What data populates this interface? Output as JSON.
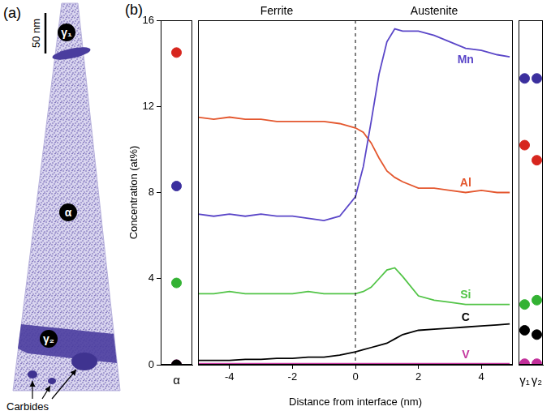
{
  "panel_a": {
    "label": "(a)",
    "scale_bar": "50 nm",
    "phases": [
      "γ₁",
      "α",
      "γ₂"
    ],
    "carbides_label": "Carbides"
  },
  "panel_b": {
    "label": "(b)"
  },
  "chart_data": [
    {
      "type": "scatter",
      "y_label": "Concentration (at%)",
      "categories": [
        "α"
      ],
      "ylim": [
        0,
        16
      ],
      "yticks": [
        0,
        4,
        8,
        12,
        16
      ],
      "tick_labels": true,
      "marker": "circle",
      "series": [
        {
          "name": "Mn",
          "color": "#3b2f9e",
          "values": [
            8.3
          ]
        },
        {
          "name": "Al",
          "color": "#d7261e",
          "values": [
            14.5
          ]
        },
        {
          "name": "Si",
          "color": "#33b233",
          "values": [
            3.8
          ]
        },
        {
          "name": "C",
          "color": "#000000",
          "values": [
            0.0
          ]
        },
        {
          "name": "V",
          "color": "#c22f9a",
          "values": [
            0.0
          ]
        }
      ]
    },
    {
      "type": "line",
      "x_label": "Distance from interface (nm)",
      "annotations": [
        "Ferrite",
        "Austenite"
      ],
      "interface": 0,
      "xlim": [
        -5,
        5
      ],
      "xticks": [
        -4,
        -2,
        0,
        2,
        4
      ],
      "ylim": [
        0,
        16
      ],
      "yticks": [
        0,
        4,
        8,
        12,
        16
      ],
      "tick_labels": "x",
      "x": [
        -5,
        -4.5,
        -4,
        -3.5,
        -3,
        -2.5,
        -2,
        -1.5,
        -1,
        -0.5,
        0,
        0.25,
        0.5,
        0.75,
        1,
        1.25,
        1.5,
        2,
        2.5,
        3,
        3.5,
        4,
        4.5,
        4.9
      ],
      "series": [
        {
          "name": "Mn",
          "color": "#5a46c8",
          "values": [
            7.0,
            6.9,
            7.0,
            6.9,
            7.0,
            6.9,
            6.9,
            6.8,
            6.7,
            6.9,
            7.8,
            9.2,
            11.3,
            13.5,
            15.0,
            15.6,
            15.5,
            15.5,
            15.3,
            15.0,
            14.7,
            14.6,
            14.4,
            14.3
          ]
        },
        {
          "name": "Al",
          "color": "#e4572e",
          "values": [
            11.5,
            11.4,
            11.5,
            11.4,
            11.4,
            11.3,
            11.3,
            11.3,
            11.3,
            11.2,
            11.0,
            10.8,
            10.3,
            9.6,
            9.0,
            8.7,
            8.5,
            8.2,
            8.2,
            8.1,
            8.0,
            8.1,
            8.0,
            8.0
          ]
        },
        {
          "name": "Si",
          "color": "#52c447",
          "values": [
            3.3,
            3.3,
            3.4,
            3.3,
            3.3,
            3.3,
            3.3,
            3.4,
            3.3,
            3.3,
            3.3,
            3.4,
            3.6,
            4.0,
            4.4,
            4.5,
            4.1,
            3.2,
            3.0,
            2.9,
            2.8,
            2.8,
            2.8,
            2.8
          ]
        },
        {
          "name": "C",
          "color": "#000000",
          "values": [
            0.2,
            0.2,
            0.2,
            0.25,
            0.25,
            0.3,
            0.3,
            0.35,
            0.35,
            0.45,
            0.6,
            0.7,
            0.8,
            0.9,
            1.0,
            1.2,
            1.4,
            1.6,
            1.65,
            1.7,
            1.75,
            1.8,
            1.85,
            1.9
          ]
        },
        {
          "name": "V",
          "color": "#c4379f",
          "values": [
            0.05,
            0.05,
            0.05,
            0.05,
            0.05,
            0.05,
            0.05,
            0.05,
            0.05,
            0.05,
            0.05,
            0.05,
            0.05,
            0.05,
            0.05,
            0.05,
            0.05,
            0.05,
            0.05,
            0.05,
            0.05,
            0.05,
            0.05,
            0.05
          ]
        }
      ]
    },
    {
      "type": "scatter",
      "categories": [
        "γ₁",
        "γ₂"
      ],
      "ylim": [
        0,
        16
      ],
      "yticks": [
        0,
        4,
        8,
        12,
        16
      ],
      "tick_labels": "x",
      "marker": "circle",
      "series": [
        {
          "name": "Mn",
          "color": "#3b2f9e",
          "values": [
            13.3,
            13.3
          ]
        },
        {
          "name": "Al",
          "color": "#d7261e",
          "values": [
            10.2,
            9.5
          ]
        },
        {
          "name": "Si",
          "color": "#33b233",
          "values": [
            2.8,
            3.0
          ]
        },
        {
          "name": "C",
          "color": "#000000",
          "values": [
            1.6,
            1.4
          ]
        },
        {
          "name": "V",
          "color": "#c22f9a",
          "values": [
            0.05,
            0.05
          ]
        }
      ]
    }
  ]
}
